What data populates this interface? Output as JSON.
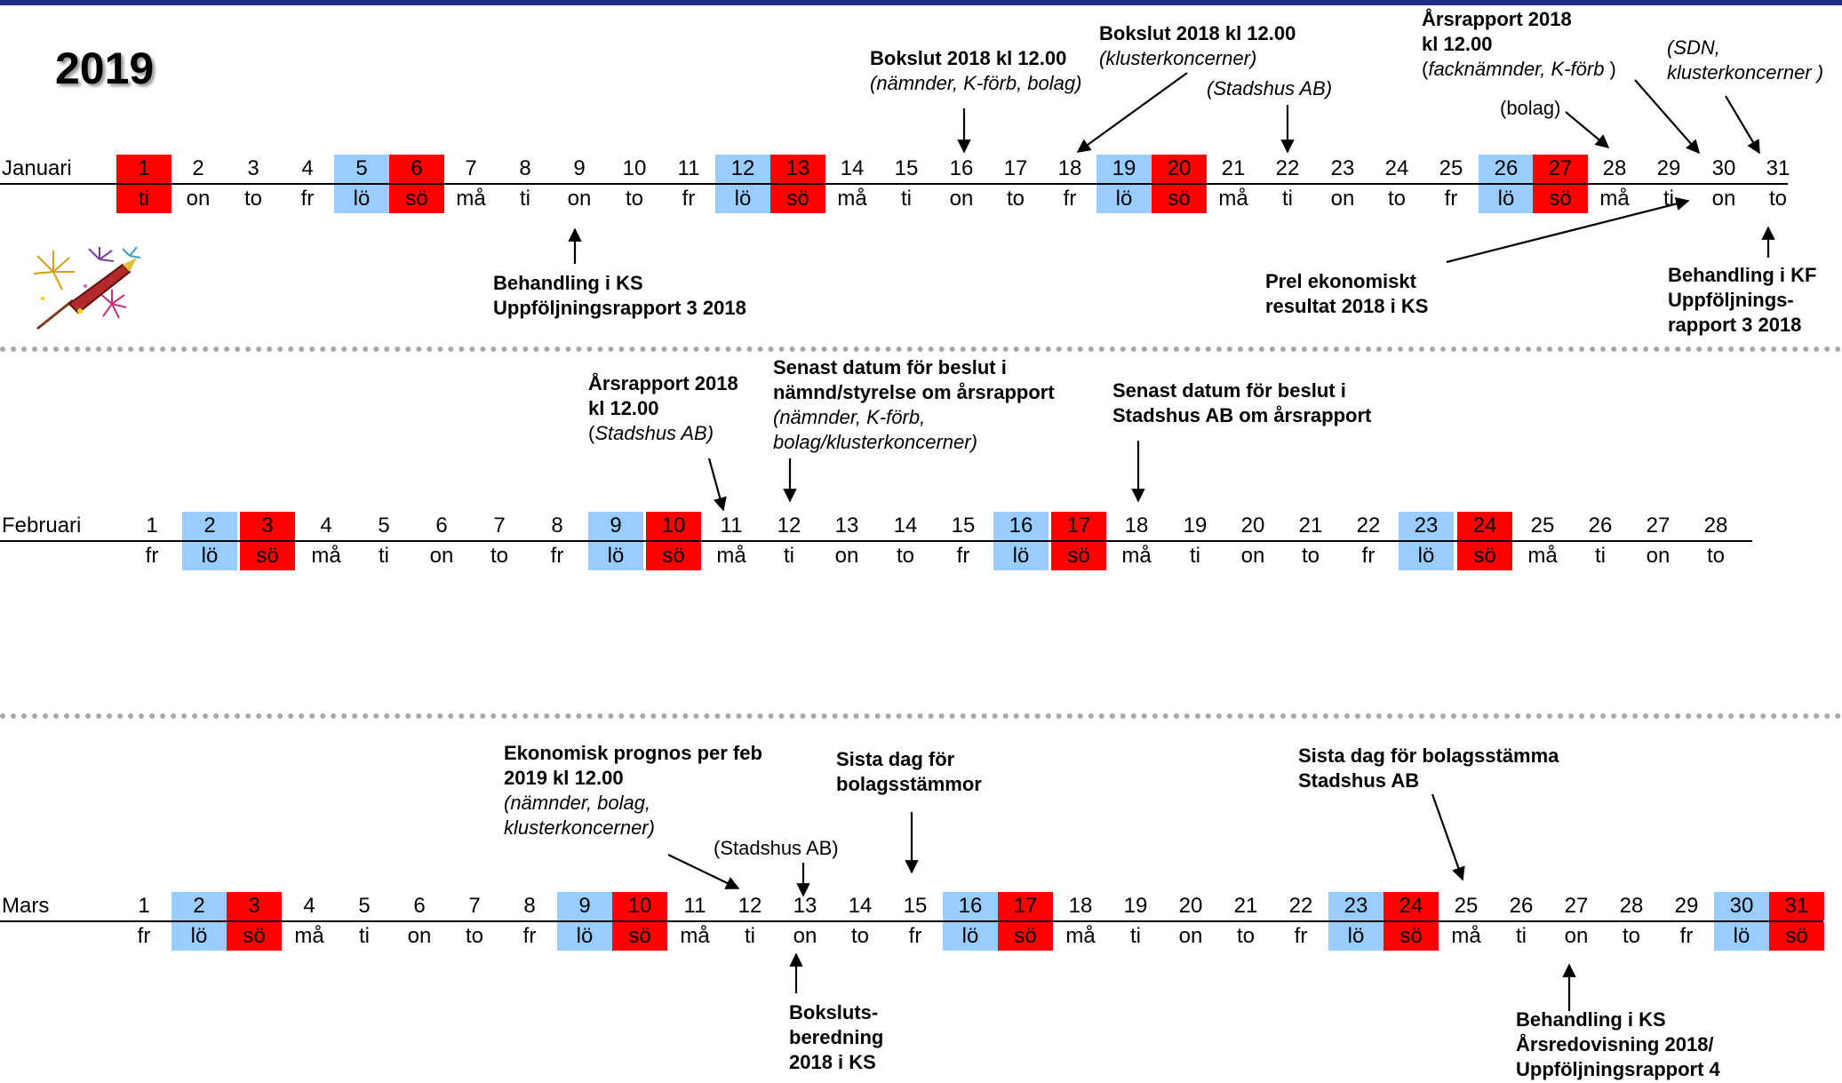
{
  "year": "2019",
  "colors": {
    "saturday": "#99ccff",
    "sunday": "#ff0000",
    "accent": "#1f2f8a"
  },
  "months": [
    {
      "name": "Januari",
      "days": [
        "1",
        "2",
        "3",
        "4",
        "5",
        "6",
        "7",
        "8",
        "9",
        "10",
        "11",
        "12",
        "13",
        "14",
        "15",
        "16",
        "17",
        "18",
        "19",
        "20",
        "21",
        "22",
        "23",
        "24",
        "25",
        "26",
        "27",
        "28",
        "29",
        "30",
        "31"
      ],
      "weekdays": [
        "ti",
        "on",
        "to",
        "fr",
        "lö",
        "sö",
        "må",
        "ti",
        "on",
        "to",
        "fr",
        "lö",
        "sö",
        "må",
        "ti",
        "on",
        "to",
        "fr",
        "lö",
        "sö",
        "må",
        "ti",
        "on",
        "to",
        "fr",
        "lö",
        "sö",
        "må",
        "ti",
        "on",
        "to"
      ],
      "holidays": [
        "1"
      ]
    },
    {
      "name": "Februari",
      "days": [
        "1",
        "2",
        "3",
        "4",
        "5",
        "6",
        "7",
        "8",
        "9",
        "10",
        "11",
        "12",
        "13",
        "14",
        "15",
        "16",
        "17",
        "18",
        "19",
        "20",
        "21",
        "22",
        "23",
        "24",
        "25",
        "26",
        "27",
        "28"
      ],
      "weekdays": [
        "fr",
        "lö",
        "sö",
        "må",
        "ti",
        "on",
        "to",
        "fr",
        "lö",
        "sö",
        "må",
        "ti",
        "on",
        "to",
        "fr",
        "lö",
        "sö",
        "må",
        "ti",
        "on",
        "to",
        "fr",
        "lö",
        "sö",
        "må",
        "ti",
        "on",
        "to"
      ],
      "holidays": []
    },
    {
      "name": "Mars",
      "days": [
        "1",
        "2",
        "3",
        "4",
        "5",
        "6",
        "7",
        "8",
        "9",
        "10",
        "11",
        "12",
        "13",
        "14",
        "15",
        "16",
        "17",
        "18",
        "19",
        "20",
        "21",
        "22",
        "23",
        "24",
        "25",
        "26",
        "27",
        "28",
        "29",
        "30",
        "31"
      ],
      "weekdays": [
        "fr",
        "lö",
        "sö",
        "må",
        "ti",
        "on",
        "to",
        "fr",
        "lö",
        "sö",
        "må",
        "ti",
        "on",
        "to",
        "fr",
        "lö",
        "sö",
        "må",
        "ti",
        "on",
        "to",
        "fr",
        "lö",
        "sö",
        "må",
        "ti",
        "on",
        "to",
        "fr",
        "lö",
        "sö"
      ],
      "holidays": []
    }
  ],
  "annotations": {
    "jan_16": {
      "title": "Bokslut 2018 kl 12.00",
      "note": "(nämnder, K-förb, bolag)"
    },
    "jan_18": {
      "title": "Bokslut 2018 kl 12.00",
      "note": "(klusterkoncerner)"
    },
    "jan_22": {
      "note": "(Stadshus AB)"
    },
    "jan_28": {
      "title1": "Årsrapport 2018",
      "title2": "kl 12.00",
      "note_open": "(",
      "note": "facknämnder, K-förb",
      "note_close": " )",
      "note2": "(bolag)"
    },
    "jan_31": {
      "note1": "(SDN,",
      "note2": "klusterkoncerner )"
    },
    "jan_9": {
      "line1": "Behandling i KS",
      "line2": "Uppföljningsrapport 3 2018"
    },
    "jan_29": {
      "line1": "Prel  ekonomiskt",
      "line2": "resultat 2018 i KS"
    },
    "jan_31b": {
      "line1": "Behandling i KF",
      "line2": "Uppföljnings-",
      "line3": "rapport 3 2018"
    },
    "feb_11": {
      "title1": "Årsrapport 2018",
      "title2": "kl 12.00",
      "note_open": "(",
      "note": "Stadshus AB)"
    },
    "feb_12": {
      "title1": "Senast datum för beslut i",
      "title2": "nämnd/styrelse om årsrapport",
      "note1": "(nämnder, K-förb,",
      "note2": "bolag/klusterkoncerner)"
    },
    "feb_18": {
      "title1": "Senast datum för beslut i",
      "title2": "Stadshus AB om årsrapport"
    },
    "mar_12": {
      "title1": "Ekonomisk prognos per feb",
      "title2": "2019 kl 12.00",
      "note1": "(nämnder, bolag,",
      "note2": "klusterkoncerner)"
    },
    "mar_13": {
      "note": "(Stadshus AB)"
    },
    "mar_15": {
      "title1": "Sista dag för",
      "title2": "bolagsstämmor"
    },
    "mar_25": {
      "title1": "Sista dag för bolagsstämma",
      "title2": "Stadshus AB"
    },
    "mar_13b": {
      "line1": "Boksluts-",
      "line2": "beredning",
      "line3": "2018 i KS"
    },
    "mar_27": {
      "line1": "Behandling i KS",
      "line2": "Årsredovisning 2018/",
      "line3": "Uppföljningsrapport 4"
    }
  }
}
